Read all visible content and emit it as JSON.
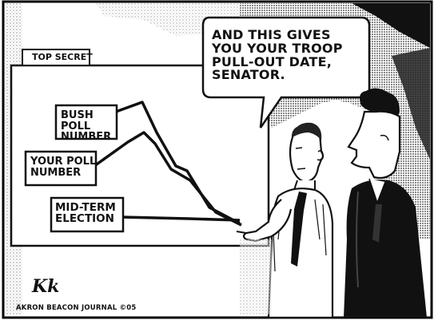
{
  "cartoon": {
    "speech_bubble": "AND THIS GIVES YOU YOUR TROOP PULL-OUT DATE, SENATOR.",
    "chart_tab": "TOP SECRET",
    "labels": {
      "bush_poll": "BUSH POLL NUMBER",
      "your_poll": "YOUR POLL NUMBER",
      "mid_term": "MID-TERM ELECTION"
    },
    "signature": "Kk",
    "credit": "AKRON BEACON JOURNAL ©05"
  }
}
